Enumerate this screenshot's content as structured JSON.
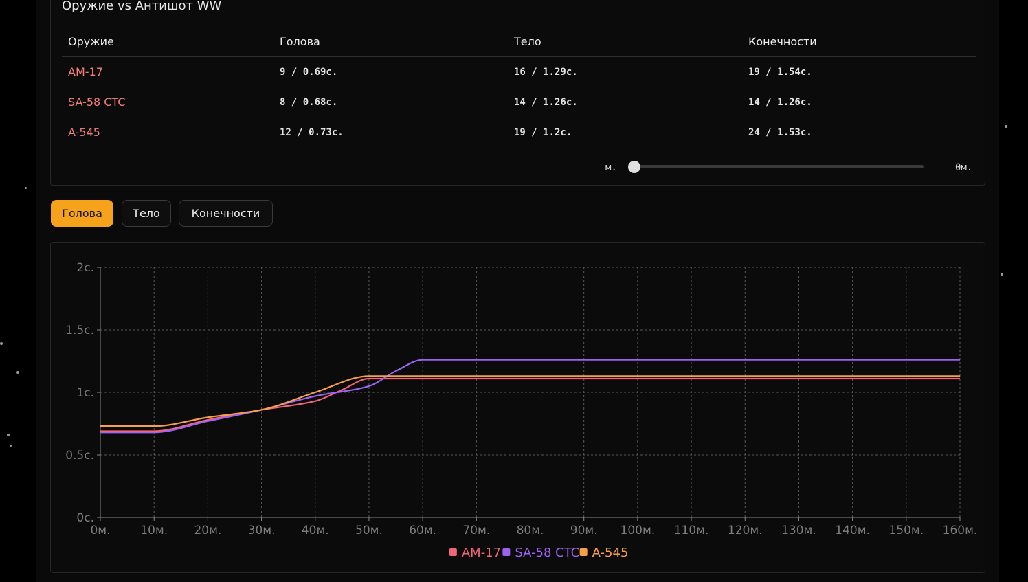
{
  "panel": {
    "title": "Оружие vs Антишот WW"
  },
  "table": {
    "headers": [
      "Оружие",
      "Голова",
      "Тело",
      "Конечности"
    ],
    "rows": [
      {
        "weapon": "AM-17",
        "head": "9 / 0.69с.",
        "body": "16 / 1.29с.",
        "limbs": "19 / 1.54с."
      },
      {
        "weapon": "SA-58 CTC",
        "head": "8 / 0.68с.",
        "body": "14 / 1.26с.",
        "limbs": "14 / 1.26с."
      },
      {
        "weapon": "A-545",
        "head": "12 / 0.73с.",
        "body": "19 / 1.2с.",
        "limbs": "24 / 1.53с."
      }
    ]
  },
  "range": {
    "min_label": "м.",
    "max_label": "0м.",
    "value": 0
  },
  "tabs": [
    {
      "label": "Голова",
      "active": true
    },
    {
      "label": "Тело",
      "active": false
    },
    {
      "label": "Конечности",
      "active": false
    }
  ],
  "colors": {
    "accent": "#f7a21b",
    "weapon_text": "#f07f78",
    "grid": "#5a5a5a",
    "axis": "#8a8a8a"
  },
  "chart_data": {
    "type": "line",
    "title": "",
    "xlabel": "",
    "ylabel": "",
    "xlim": [
      0,
      160
    ],
    "ylim": [
      0,
      2
    ],
    "grid": true,
    "legend_position": "bottom",
    "x_ticks": [
      0,
      10,
      20,
      30,
      40,
      50,
      60,
      70,
      80,
      90,
      100,
      110,
      120,
      130,
      140,
      150,
      160
    ],
    "x_tick_labels": [
      "0м.",
      "10м.",
      "20м.",
      "30м.",
      "40м.",
      "50м.",
      "60м.",
      "70м.",
      "80м.",
      "90м.",
      "100м.",
      "110м.",
      "120м.",
      "130м.",
      "140м.",
      "150м.",
      "160м."
    ],
    "y_ticks": [
      0,
      0.5,
      1,
      1.5,
      2
    ],
    "y_tick_labels": [
      "0с.",
      "0.5с.",
      "1с.",
      "1.5с.",
      "2с."
    ],
    "series": [
      {
        "name": "AM-17",
        "color": "#f0657a",
        "x": [
          0,
          10,
          20,
          30,
          40,
          45,
          50,
          160
        ],
        "y": [
          0.69,
          0.69,
          0.78,
          0.86,
          0.93,
          1.02,
          1.11,
          1.11
        ]
      },
      {
        "name": "SA-58 CTC",
        "color": "#9b63f0",
        "x": [
          0,
          10,
          20,
          30,
          40,
          50,
          55,
          60,
          160
        ],
        "y": [
          0.68,
          0.68,
          0.77,
          0.86,
          0.97,
          1.05,
          1.17,
          1.26,
          1.26
        ]
      },
      {
        "name": "A-545",
        "color": "#f7a04a",
        "x": [
          0,
          10,
          20,
          30,
          40,
          50,
          160
        ],
        "y": [
          0.73,
          0.73,
          0.8,
          0.86,
          1.0,
          1.13,
          1.13
        ]
      }
    ]
  }
}
